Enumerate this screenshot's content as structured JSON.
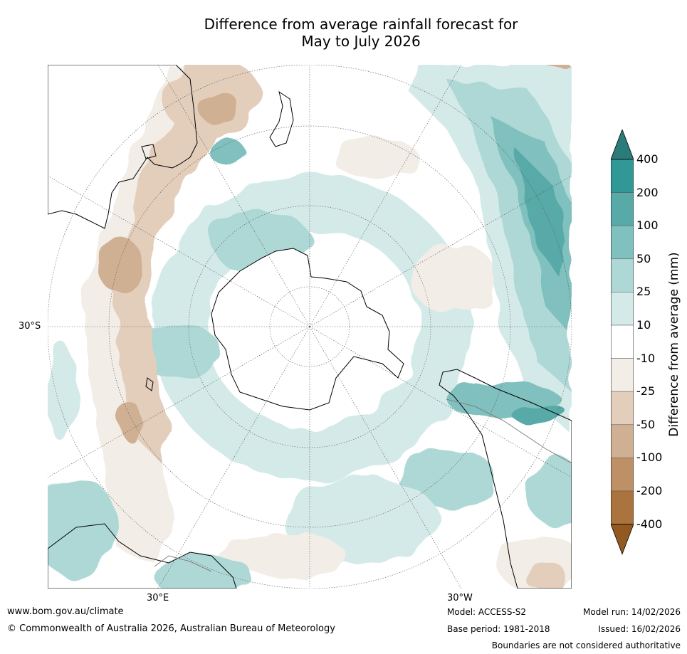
{
  "title": {
    "line1": "Difference from average rainfall forecast for",
    "line2": "May to July 2026"
  },
  "map": {
    "projection": "south-polar-stereographic",
    "axis_labels": {
      "latitude_left": "30°S",
      "longitude_bottom_left": "30°E",
      "longitude_bottom_right": "30°W"
    },
    "colors": {
      "coastline": "#000000",
      "country_border": "#808080",
      "graticule": "#555555"
    }
  },
  "colorbar": {
    "label": "Difference from average (mm)",
    "ticks": [
      "400",
      "200",
      "100",
      "50",
      "25",
      "10",
      "-10",
      "-25",
      "-50",
      "-100",
      "-200",
      "-400"
    ],
    "bins": [
      {
        "range": "> 400",
        "color": "#2a7c7a"
      },
      {
        "range": "200 – 400",
        "color": "#329896"
      },
      {
        "range": "100 – 200",
        "color": "#58aaa8"
      },
      {
        "range": "50 – 100",
        "color": "#80c0be"
      },
      {
        "range": "25 – 50",
        "color": "#aed8d6"
      },
      {
        "range": "10 – 25",
        "color": "#d4eae9"
      },
      {
        "range": "-10 – 10",
        "color": "#ffffff"
      },
      {
        "range": "-25 – -10",
        "color": "#f2ede6"
      },
      {
        "range": "-50 – -25",
        "color": "#e3cdbb"
      },
      {
        "range": "-100 – -50",
        "color": "#d0b092"
      },
      {
        "range": "-200 – -100",
        "color": "#be9065"
      },
      {
        "range": "-400 – -200",
        "color": "#ab733d"
      },
      {
        "range": "< -400",
        "color": "#925a20"
      }
    ]
  },
  "footer": {
    "website": "www.bom.gov.au/climate",
    "copyright": "© Commonwealth of Australia 2026, Australian Bureau of Meteorology",
    "model": "Model: ACCESS-S2",
    "base_period": "Base period: 1981-2018",
    "model_run": "Model run: 14/02/2026",
    "issued": "Issued: 16/02/2026",
    "disclaimer": "Boundaries are not considered authoritative"
  }
}
